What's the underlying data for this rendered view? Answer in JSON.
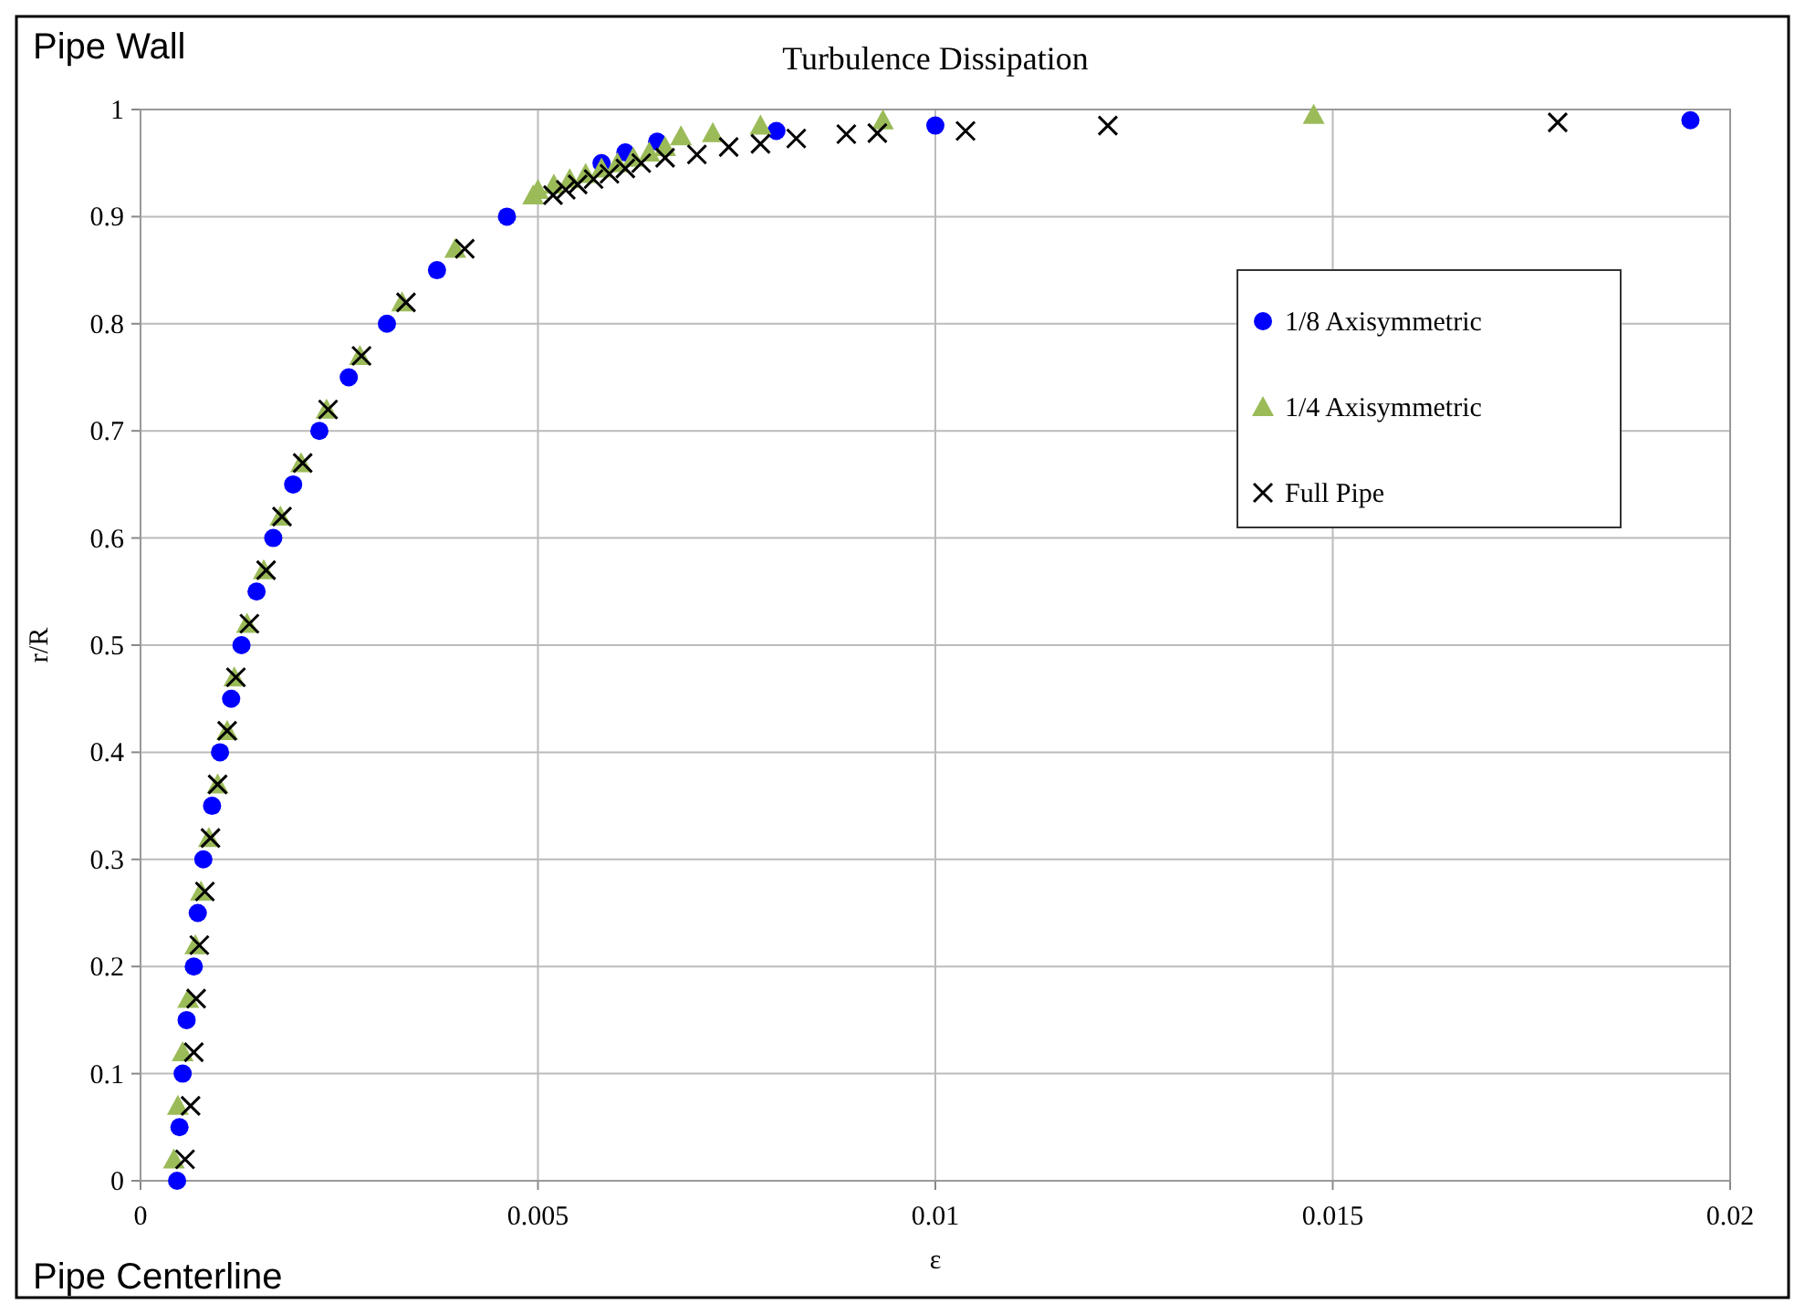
{
  "chart_data": {
    "type": "scatter",
    "title": "Turbulence Dissipation",
    "xlabel": "ε",
    "ylabel": "r/R",
    "annotations": [
      "Pipe Wall",
      "Pipe Centerline"
    ],
    "xlim": [
      0,
      0.02
    ],
    "ylim": [
      0,
      1
    ],
    "xticks": [
      0,
      0.005,
      0.01,
      0.015,
      0.02
    ],
    "yticks": [
      0,
      0.1,
      0.2,
      0.3,
      0.4,
      0.5,
      0.6,
      0.7,
      0.8,
      0.9,
      1
    ],
    "grid": true,
    "legend": "top right",
    "series": [
      {
        "name": "1/8 Axisymmetric",
        "color": "#0000ff",
        "marker": "circle",
        "x": [
          0.00046,
          0.00049,
          0.00053,
          0.00058,
          0.00067,
          0.00072,
          0.00079,
          0.0009,
          0.001,
          0.00114,
          0.00127,
          0.00146,
          0.00167,
          0.00192,
          0.00225,
          0.00262,
          0.0031,
          0.00373,
          0.00461,
          0.0058,
          0.0061,
          0.0065,
          0.008,
          0.01,
          0.0195
        ],
        "values": [
          0,
          0.05,
          0.1,
          0.15,
          0.2,
          0.25,
          0.3,
          0.35,
          0.4,
          0.45,
          0.5,
          0.55,
          0.6,
          0.65,
          0.7,
          0.75,
          0.8,
          0.85,
          0.9,
          0.95,
          0.96,
          0.97,
          0.98,
          0.985,
          0.99
        ]
      },
      {
        "name": "1/4 Axisymmetric",
        "color": "#9bbb59",
        "marker": "triangle",
        "x": [
          0.00042,
          0.00047,
          0.00053,
          0.0006,
          0.00069,
          0.00076,
          0.00086,
          0.00097,
          0.00109,
          0.00118,
          0.00134,
          0.00155,
          0.00176,
          0.00202,
          0.00234,
          0.00276,
          0.00329,
          0.00396,
          0.00494,
          0.005,
          0.0052,
          0.0054,
          0.0056,
          0.0058,
          0.006,
          0.0062,
          0.0064,
          0.0066,
          0.0068,
          0.0072,
          0.0078,
          0.00934,
          0.01476
        ],
        "values": [
          0.02,
          0.07,
          0.12,
          0.17,
          0.22,
          0.27,
          0.32,
          0.37,
          0.42,
          0.47,
          0.52,
          0.57,
          0.62,
          0.67,
          0.72,
          0.77,
          0.82,
          0.87,
          0.92,
          0.925,
          0.93,
          0.935,
          0.94,
          0.945,
          0.95,
          0.955,
          0.96,
          0.965,
          0.975,
          0.978,
          0.985,
          0.99,
          0.995
        ]
      },
      {
        "name": "Full Pipe",
        "color": "#000000",
        "marker": "cross",
        "x": [
          0.00056,
          0.00063,
          0.00067,
          0.0007,
          0.00074,
          0.00081,
          0.00088,
          0.00097,
          0.00109,
          0.0012,
          0.00137,
          0.00158,
          0.00178,
          0.00204,
          0.00236,
          0.00278,
          0.00334,
          0.00408,
          0.00519,
          0.00535,
          0.0055,
          0.0057,
          0.0059,
          0.0061,
          0.0063,
          0.0066,
          0.007,
          0.0074,
          0.0078,
          0.00825,
          0.00888,
          0.00927,
          0.01038,
          0.01217,
          0.01783
        ],
        "values": [
          0.02,
          0.07,
          0.12,
          0.17,
          0.22,
          0.27,
          0.32,
          0.37,
          0.42,
          0.47,
          0.52,
          0.57,
          0.62,
          0.67,
          0.72,
          0.77,
          0.82,
          0.87,
          0.92,
          0.925,
          0.93,
          0.935,
          0.94,
          0.945,
          0.95,
          0.955,
          0.958,
          0.965,
          0.968,
          0.973,
          0.977,
          0.978,
          0.98,
          0.985,
          0.988
        ]
      }
    ]
  }
}
